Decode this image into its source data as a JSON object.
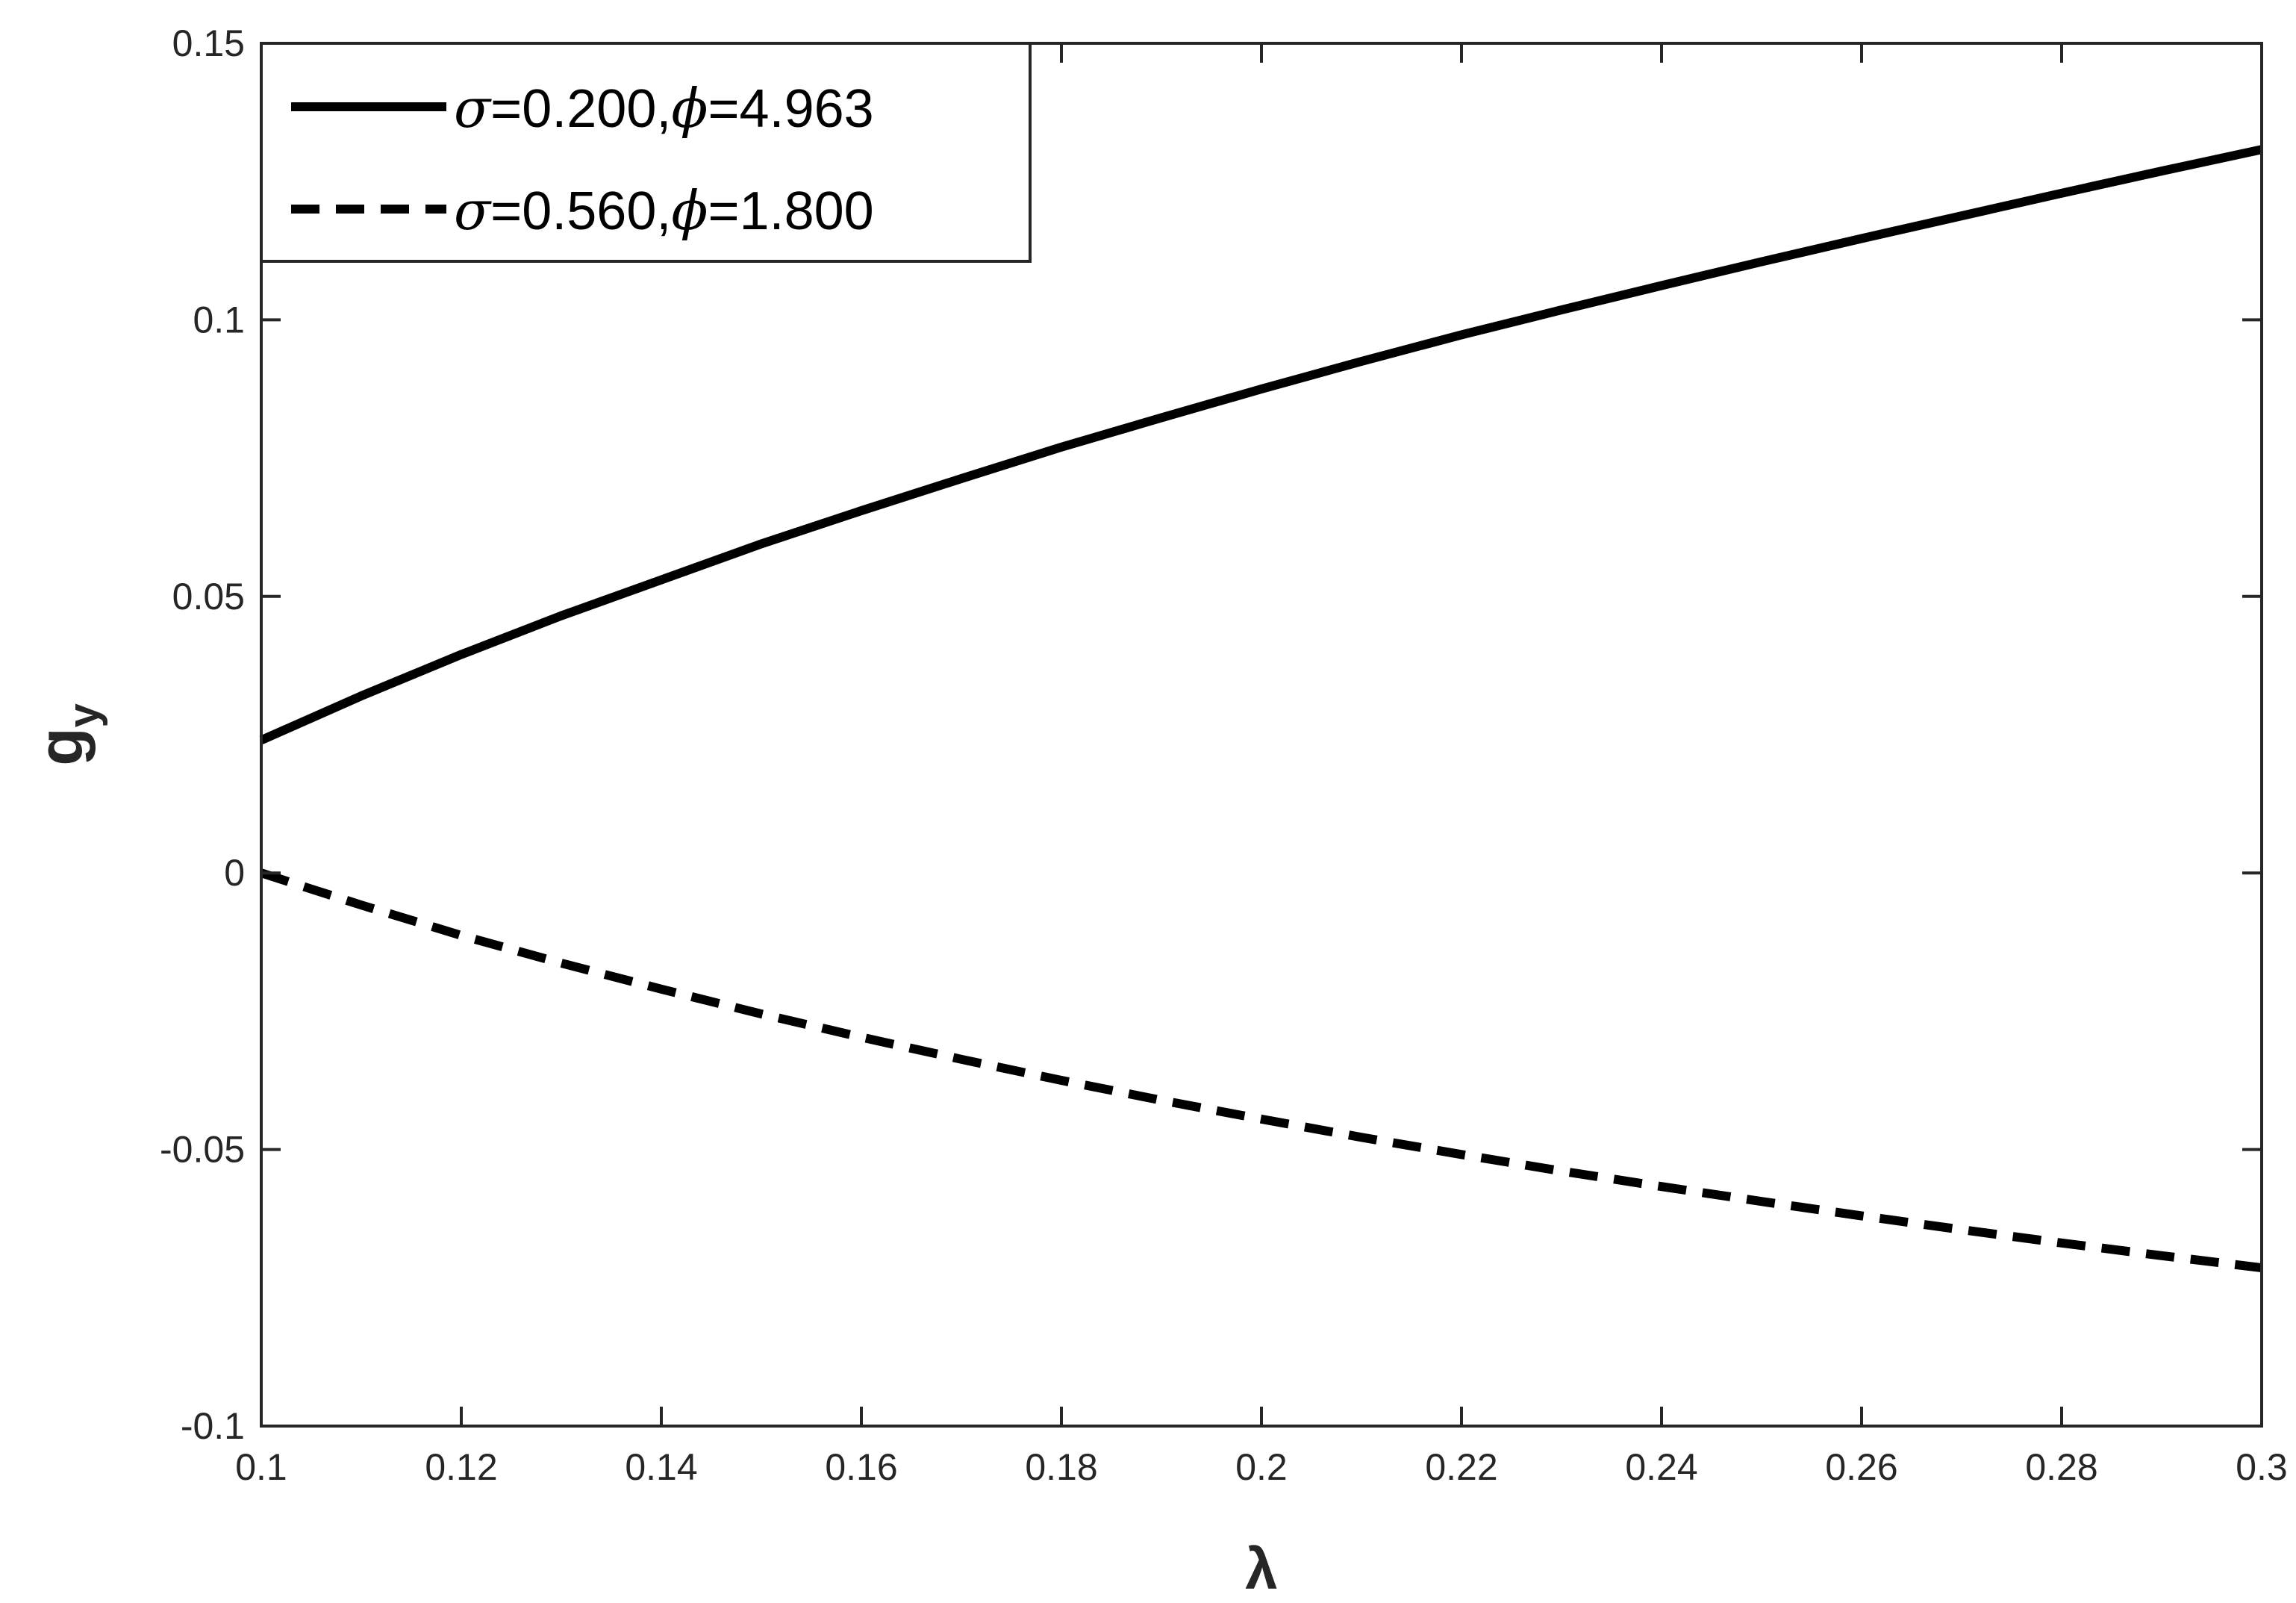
{
  "chart_data": {
    "type": "line",
    "xlabel": "λ",
    "ylabel": "g",
    "ylabel_subscript": "y",
    "xlim": [
      0.1,
      0.3
    ],
    "ylim": [
      -0.1,
      0.15
    ],
    "xticks": [
      0.1,
      0.12,
      0.14,
      0.16,
      0.18,
      0.2,
      0.22,
      0.24,
      0.26,
      0.28,
      0.3
    ],
    "xtick_labels": [
      "0.1",
      "0.12",
      "0.14",
      "0.16",
      "0.18",
      "0.2",
      "0.22",
      "0.24",
      "0.26",
      "0.28",
      "0.3"
    ],
    "yticks": [
      -0.1,
      -0.05,
      0,
      0.05,
      0.1,
      0.15
    ],
    "ytick_labels": [
      "-0.1",
      "-0.05",
      "0",
      "0.05",
      "0.1",
      "0.15"
    ],
    "grid": false,
    "box": true,
    "legend_location": "top-left",
    "series": [
      {
        "name": "σ=0.200,ϕ=4.963",
        "name_parts": {
          "sym1": "σ",
          "val1": "=0.200,",
          "sym2": "ϕ",
          "val2": "=4.963"
        },
        "line_style": "solid",
        "color": "#000000",
        "x": [
          0.1,
          0.11,
          0.12,
          0.13,
          0.14,
          0.15,
          0.16,
          0.17,
          0.18,
          0.19,
          0.2,
          0.21,
          0.22,
          0.23,
          0.24,
          0.25,
          0.26,
          0.27,
          0.28,
          0.29,
          0.3
        ],
        "y": [
          0.024,
          0.032,
          0.0395,
          0.0465,
          0.053,
          0.0595,
          0.0655,
          0.0713,
          0.077,
          0.0823,
          0.0875,
          0.0925,
          0.0973,
          0.1018,
          0.1062,
          0.1105,
          0.1147,
          0.1188,
          0.1229,
          0.1269,
          0.1308
        ]
      },
      {
        "name": "σ=0.560,ϕ=1.800",
        "name_parts": {
          "sym1": "σ",
          "val1": "=0.560,",
          "sym2": "ϕ",
          "val2": "=1.800"
        },
        "line_style": "dashed",
        "color": "#000000",
        "x": [
          0.1,
          0.11,
          0.12,
          0.13,
          0.14,
          0.15,
          0.16,
          0.17,
          0.18,
          0.19,
          0.2,
          0.21,
          0.22,
          0.23,
          0.24,
          0.25,
          0.26,
          0.27,
          0.28,
          0.29,
          0.3
        ],
        "y": [
          0.0,
          -0.0058,
          -0.0113,
          -0.0163,
          -0.021,
          -0.0255,
          -0.0297,
          -0.0337,
          -0.0375,
          -0.0411,
          -0.0445,
          -0.0478,
          -0.0509,
          -0.0539,
          -0.0567,
          -0.0594,
          -0.062,
          -0.0645,
          -0.0669,
          -0.0692,
          -0.0714
        ]
      }
    ]
  }
}
